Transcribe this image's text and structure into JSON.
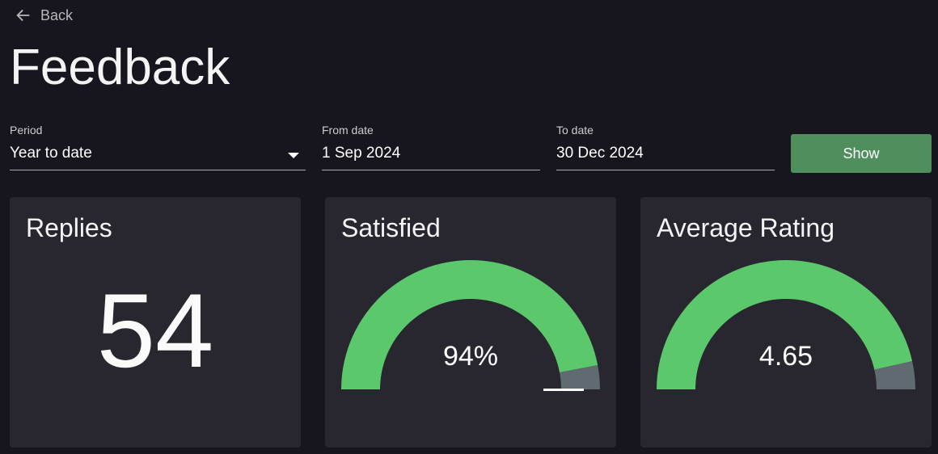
{
  "nav": {
    "back_label": "Back",
    "back_icon": "arrow-left-icon"
  },
  "page": {
    "title": "Feedback"
  },
  "filters": {
    "period": {
      "label": "Period",
      "value": "Year to date"
    },
    "from_date": {
      "label": "From date",
      "value": "1 Sep 2024"
    },
    "to_date": {
      "label": "To date",
      "value": "30 Dec 2024"
    },
    "show_label": "Show"
  },
  "cards": {
    "replies": {
      "title": "Replies",
      "value": "54"
    },
    "satisfied": {
      "title": "Satisfied",
      "value": "94%",
      "fraction": 0.94
    },
    "rating": {
      "title": "Average Rating",
      "value": "4.65",
      "fraction": 0.93
    }
  },
  "colors": {
    "background": "#17161e",
    "card": "#28272f",
    "gauge_fill": "#5cc86c",
    "gauge_rest": "#5f6b70",
    "button": "#4f8f5e"
  }
}
